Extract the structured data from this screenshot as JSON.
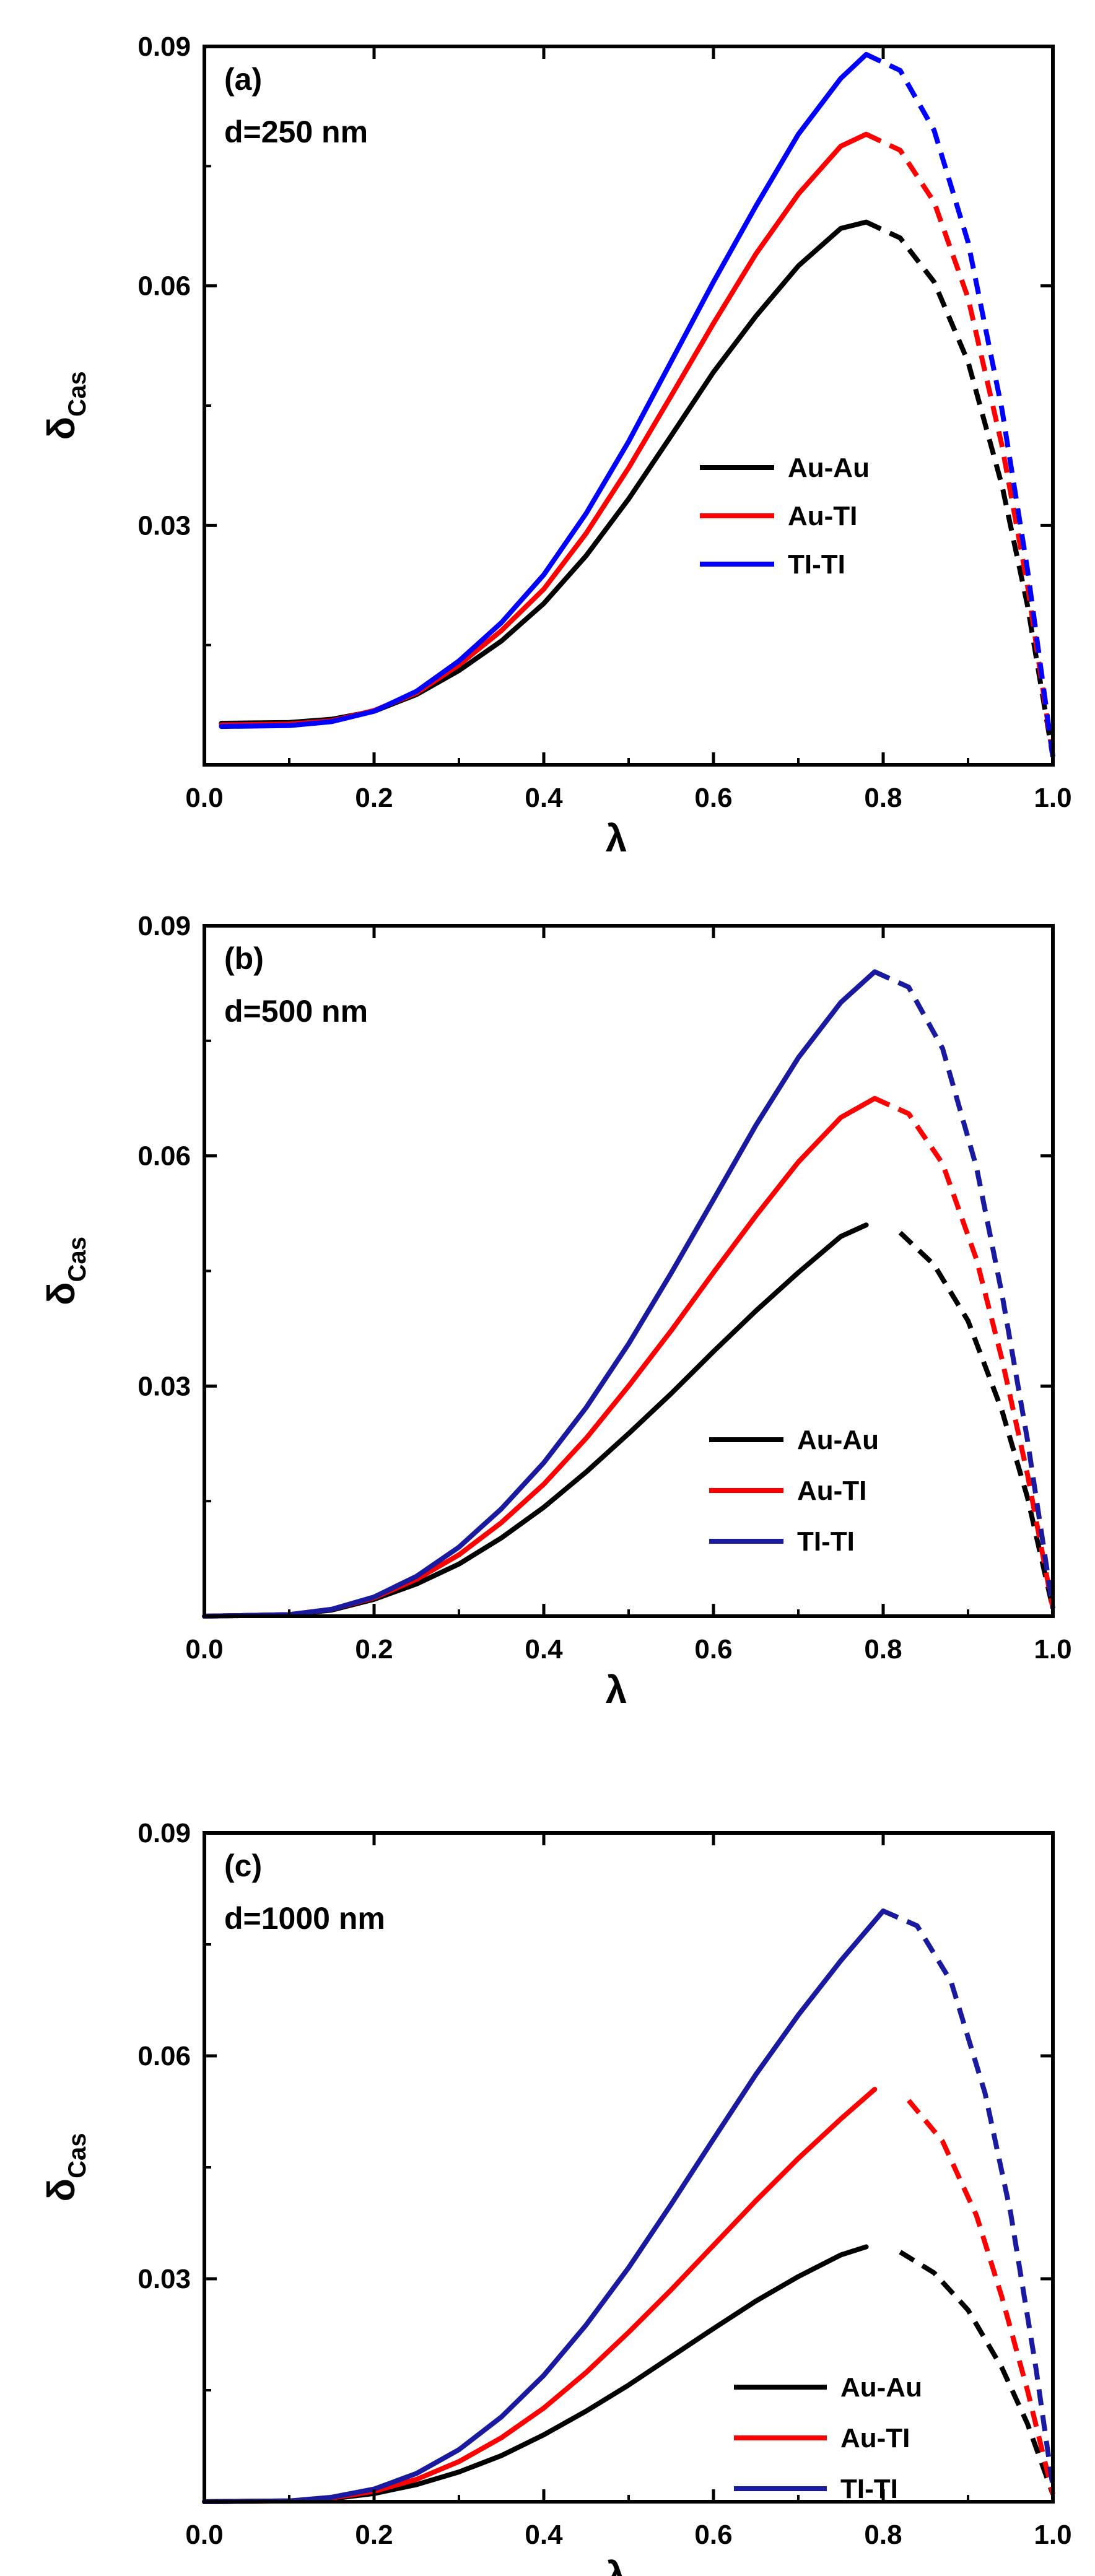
{
  "chart_data": [
    {
      "type": "line",
      "panel_label": "(a)",
      "annotation": "d=250 nm",
      "xlabel": "λ",
      "ylabel": "δ",
      "ylabel_sub": "Cas",
      "xlim": [
        0.0,
        1.0
      ],
      "ylim": [
        0.0,
        0.09
      ],
      "xticks": [
        "0.0",
        "0.2",
        "0.4",
        "0.6",
        "0.8",
        "1.0"
      ],
      "yticks": [
        "0.03",
        "0.06",
        "0.09"
      ],
      "legend_position": "center-right",
      "solid_until": 0.78,
      "series": [
        {
          "name": "Au-Au",
          "color": "#000000",
          "x": [
            0.02,
            0.1,
            0.15,
            0.2,
            0.25,
            0.3,
            0.35,
            0.4,
            0.45,
            0.5,
            0.55,
            0.6,
            0.65,
            0.7,
            0.75,
            0.78,
            0.82,
            0.86,
            0.9,
            0.94,
            0.97,
            1.0
          ],
          "y": [
            0.0052,
            0.0053,
            0.0057,
            0.0067,
            0.0088,
            0.0118,
            0.0155,
            0.0202,
            0.0262,
            0.0333,
            0.0412,
            0.0492,
            0.0562,
            0.0625,
            0.0672,
            0.068,
            0.066,
            0.0605,
            0.0505,
            0.035,
            0.02,
            0.001
          ]
        },
        {
          "name": "Au-TI",
          "color": "#ff0000",
          "x": [
            0.02,
            0.1,
            0.15,
            0.2,
            0.25,
            0.3,
            0.35,
            0.4,
            0.45,
            0.5,
            0.55,
            0.6,
            0.65,
            0.7,
            0.75,
            0.78,
            0.82,
            0.86,
            0.9,
            0.94,
            0.97,
            1.0
          ],
          "y": [
            0.005,
            0.0051,
            0.0055,
            0.0068,
            0.009,
            0.0125,
            0.0168,
            0.022,
            0.029,
            0.0372,
            0.0462,
            0.0553,
            0.064,
            0.0715,
            0.0775,
            0.079,
            0.077,
            0.0705,
            0.0585,
            0.04,
            0.0225,
            0.001
          ]
        },
        {
          "name": "TI-TI",
          "color": "#0000ff",
          "x": [
            0.02,
            0.1,
            0.15,
            0.2,
            0.25,
            0.3,
            0.35,
            0.4,
            0.45,
            0.5,
            0.55,
            0.6,
            0.65,
            0.7,
            0.75,
            0.78,
            0.82,
            0.86,
            0.9,
            0.94,
            0.97,
            1.0
          ],
          "y": [
            0.0048,
            0.0049,
            0.0054,
            0.0067,
            0.0092,
            0.013,
            0.0178,
            0.0238,
            0.0315,
            0.0405,
            0.0505,
            0.0605,
            0.07,
            0.079,
            0.086,
            0.089,
            0.087,
            0.0795,
            0.0655,
            0.0445,
            0.0245,
            0.001
          ]
        }
      ]
    },
    {
      "type": "line",
      "panel_label": "(b)",
      "annotation": "d=500 nm",
      "xlabel": "λ",
      "ylabel": "δ",
      "ylabel_sub": "Cas",
      "xlim": [
        0.0,
        1.0
      ],
      "ylim": [
        0.0,
        0.09
      ],
      "xticks": [
        "0.0",
        "0.2",
        "0.4",
        "0.6",
        "0.8",
        "1.0"
      ],
      "yticks": [
        "0.03",
        "0.06",
        "0.09"
      ],
      "legend_position": "center-right",
      "solid_until": 0.79,
      "series": [
        {
          "name": "Au-Au",
          "color": "#000000",
          "x": [
            0.0,
            0.1,
            0.15,
            0.2,
            0.25,
            0.3,
            0.35,
            0.4,
            0.45,
            0.5,
            0.55,
            0.6,
            0.65,
            0.7,
            0.75,
            0.78,
            0.82,
            0.86,
            0.9,
            0.94,
            0.97,
            1.0
          ],
          "y": [
            0.0,
            0.0002,
            0.0008,
            0.0022,
            0.0042,
            0.0068,
            0.0102,
            0.0142,
            0.0188,
            0.0238,
            0.029,
            0.0345,
            0.0398,
            0.0448,
            0.0495,
            0.051,
            0.05,
            0.0458,
            0.0385,
            0.0268,
            0.0155,
            0.001
          ]
        },
        {
          "name": "Au-TI",
          "color": "#ff0000",
          "x": [
            0.0,
            0.1,
            0.15,
            0.2,
            0.25,
            0.3,
            0.35,
            0.4,
            0.45,
            0.5,
            0.55,
            0.6,
            0.65,
            0.7,
            0.75,
            0.79,
            0.83,
            0.87,
            0.91,
            0.94,
            0.97,
            1.0
          ],
          "y": [
            0.0,
            0.0002,
            0.0009,
            0.0024,
            0.0048,
            0.008,
            0.0122,
            0.0172,
            0.0232,
            0.03,
            0.0372,
            0.0448,
            0.0522,
            0.0592,
            0.065,
            0.0675,
            0.0655,
            0.059,
            0.0465,
            0.0335,
            0.0185,
            0.001
          ]
        },
        {
          "name": "TI-TI",
          "color": "#1a1aa0",
          "x": [
            0.0,
            0.1,
            0.15,
            0.2,
            0.25,
            0.3,
            0.35,
            0.4,
            0.45,
            0.5,
            0.55,
            0.6,
            0.65,
            0.7,
            0.75,
            0.79,
            0.83,
            0.87,
            0.91,
            0.94,
            0.97,
            1.0
          ],
          "y": [
            0.0,
            0.0002,
            0.0009,
            0.0025,
            0.0052,
            0.009,
            0.014,
            0.02,
            0.0272,
            0.0355,
            0.0447,
            0.0543,
            0.064,
            0.0728,
            0.08,
            0.084,
            0.082,
            0.074,
            0.0585,
            0.042,
            0.023,
            0.001
          ]
        }
      ]
    },
    {
      "type": "line",
      "panel_label": "(c)",
      "annotation": "d=1000 nm",
      "xlabel": "λ",
      "ylabel": "δ",
      "ylabel_sub": "Cas",
      "xlim": [
        0.0,
        1.0
      ],
      "ylim": [
        0.0,
        0.09
      ],
      "xticks": [
        "0.0",
        "0.2",
        "0.4",
        "0.6",
        "0.8",
        "1.0"
      ],
      "yticks": [
        "0.03",
        "0.06",
        "0.09"
      ],
      "legend_position": "bottom-right",
      "solid_until": 0.8,
      "series": [
        {
          "name": "Au-Au",
          "color": "#000000",
          "x": [
            0.0,
            0.1,
            0.15,
            0.2,
            0.25,
            0.3,
            0.35,
            0.4,
            0.45,
            0.5,
            0.55,
            0.6,
            0.65,
            0.7,
            0.75,
            0.78,
            0.82,
            0.86,
            0.9,
            0.94,
            0.97,
            1.0
          ],
          "y": [
            0.0,
            0.0001,
            0.0004,
            0.0011,
            0.0023,
            0.004,
            0.0062,
            0.009,
            0.0122,
            0.0157,
            0.0195,
            0.0233,
            0.027,
            0.0303,
            0.0332,
            0.0343,
            0.0336,
            0.0308,
            0.0258,
            0.018,
            0.0105,
            0.001
          ]
        },
        {
          "name": "Au-TI",
          "color": "#ff0000",
          "x": [
            0.0,
            0.1,
            0.15,
            0.2,
            0.25,
            0.3,
            0.35,
            0.4,
            0.45,
            0.5,
            0.55,
            0.6,
            0.65,
            0.7,
            0.75,
            0.79,
            0.83,
            0.87,
            0.91,
            0.94,
            0.97,
            1.0
          ],
          "y": [
            0.0,
            0.0001,
            0.0005,
            0.0014,
            0.003,
            0.0054,
            0.0086,
            0.0126,
            0.0174,
            0.0228,
            0.0285,
            0.0345,
            0.0405,
            0.0462,
            0.0515,
            0.0555,
            0.054,
            0.0485,
            0.0385,
            0.0275,
            0.015,
            0.001
          ]
        },
        {
          "name": "TI-TI",
          "color": "#1a1aa0",
          "x": [
            0.0,
            0.1,
            0.15,
            0.2,
            0.25,
            0.3,
            0.35,
            0.4,
            0.45,
            0.5,
            0.55,
            0.6,
            0.65,
            0.7,
            0.75,
            0.8,
            0.84,
            0.88,
            0.92,
            0.95,
            0.98,
            1.0
          ],
          "y": [
            0.0,
            0.0001,
            0.0006,
            0.0017,
            0.0038,
            0.007,
            0.0114,
            0.017,
            0.0238,
            0.0315,
            0.04,
            0.0488,
            0.0575,
            0.0655,
            0.0728,
            0.0795,
            0.0775,
            0.07,
            0.055,
            0.039,
            0.018,
            0.002
          ]
        }
      ]
    }
  ]
}
